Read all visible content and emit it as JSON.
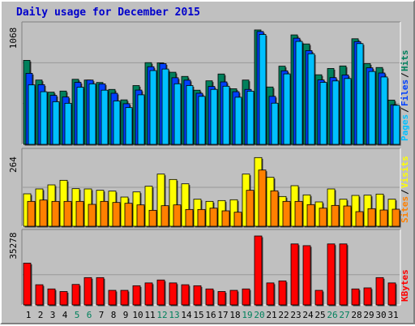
{
  "title": "Daily usage for December 2015",
  "colors": {
    "background": "#c0c0c0",
    "title": "#0000cc",
    "hits": "#00805c",
    "files": "#0040ff",
    "pages": "#00c0ff",
    "visits": "#ffff00",
    "sites": "#ff8000",
    "kbytes": "#ff0000",
    "weekend_label": "#00805c",
    "grid": "#999999"
  },
  "chart_data": [
    {
      "type": "bar",
      "panel": "hits-files-pages",
      "categories": [
        "1",
        "2",
        "3",
        "4",
        "5",
        "6",
        "7",
        "8",
        "9",
        "10",
        "11",
        "12",
        "13",
        "14",
        "15",
        "16",
        "17",
        "18",
        "19",
        "20",
        "21",
        "22",
        "23",
        "24",
        "25",
        "26",
        "27",
        "28",
        "29",
        "30",
        "31"
      ],
      "weekend_days": [
        "5",
        "6",
        "12",
        "13",
        "19",
        "20",
        "26",
        "27"
      ],
      "ymax_label": "1068",
      "ylim": [
        0,
        1068
      ],
      "legend": [
        {
          "text": "Pages",
          "key": "pages"
        },
        {
          "text": "Files",
          "key": "files"
        },
        {
          "text": "Hits",
          "key": "hits"
        }
      ],
      "series": [
        {
          "name": "Hits",
          "key": "hits",
          "values": [
            763,
            584,
            474,
            484,
            591,
            584,
            562,
            499,
            404,
            534,
            742,
            740,
            655,
            617,
            492,
            577,
            639,
            505,
            584,
            1039,
            521,
            710,
            994,
            912,
            632,
            689,
            712,
            959,
            733,
            698,
            402
          ]
        },
        {
          "name": "Files",
          "key": "files",
          "values": [
            645,
            542,
            445,
            430,
            563,
            584,
            549,
            464,
            369,
            493,
            705,
            733,
            605,
            583,
            464,
            526,
            567,
            478,
            499,
            1025,
            436,
            668,
            964,
            851,
            585,
            606,
            630,
            933,
            695,
            648,
            360
          ]
        },
        {
          "name": "Pages",
          "key": "pages",
          "values": [
            540,
            478,
            387,
            373,
            519,
            549,
            492,
            394,
            334,
            450,
            670,
            684,
            550,
            534,
            436,
            499,
            528,
            428,
            483,
            998,
            374,
            640,
            935,
            823,
            563,
            576,
            598,
            915,
            662,
            612,
            355
          ]
        }
      ]
    },
    {
      "type": "bar",
      "panel": "visits-sites",
      "categories": [
        "1",
        "2",
        "3",
        "4",
        "5",
        "6",
        "7",
        "8",
        "9",
        "10",
        "11",
        "12",
        "13",
        "14",
        "15",
        "16",
        "17",
        "18",
        "19",
        "20",
        "21",
        "22",
        "23",
        "24",
        "25",
        "26",
        "27",
        "28",
        "29",
        "30",
        "31"
      ],
      "ymax_label": "264",
      "ylim": [
        0,
        264
      ],
      "legend": [
        {
          "text": "Sites",
          "key": "sites"
        },
        {
          "text": "Visits",
          "key": "visits"
        }
      ],
      "series": [
        {
          "name": "Visits",
          "key": "visits",
          "values": [
            120,
            138,
            153,
            170,
            139,
            138,
            133,
            130,
            108,
            127,
            148,
            193,
            173,
            157,
            100,
            92,
            95,
            98,
            193,
            254,
            181,
            110,
            150,
            116,
            90,
            138,
            100,
            114,
            115,
            119,
            100
          ]
        },
        {
          "name": "Sites",
          "key": "sites",
          "values": [
            92,
            97,
            92,
            92,
            92,
            81,
            92,
            88,
            85,
            79,
            59,
            76,
            79,
            62,
            62,
            67,
            57,
            52,
            133,
            208,
            131,
            92,
            92,
            80,
            67,
            77,
            75,
            54,
            65,
            60,
            63
          ]
        }
      ]
    },
    {
      "type": "bar",
      "panel": "kbytes",
      "categories": [
        "1",
        "2",
        "3",
        "4",
        "5",
        "6",
        "7",
        "8",
        "9",
        "10",
        "11",
        "12",
        "13",
        "14",
        "15",
        "16",
        "17",
        "18",
        "19",
        "20",
        "21",
        "22",
        "23",
        "24",
        "25",
        "26",
        "27",
        "28",
        "29",
        "30",
        "31"
      ],
      "ymax_label": "35278",
      "ylim": [
        0,
        35278
      ],
      "legend": [
        {
          "text": "KBytes",
          "key": "kbytes"
        }
      ],
      "series": [
        {
          "name": "KBytes",
          "key": "kbytes",
          "values": [
            21370,
            10330,
            8180,
            6850,
            10480,
            13980,
            13980,
            7460,
            7460,
            9810,
            11260,
            12760,
            11260,
            10330,
            9810,
            8180,
            6850,
            7460,
            8180,
            35278,
            11260,
            12290,
            31210,
            30330,
            7460,
            31210,
            31210,
            8180,
            8720,
            13980,
            11260
          ]
        }
      ]
    }
  ]
}
